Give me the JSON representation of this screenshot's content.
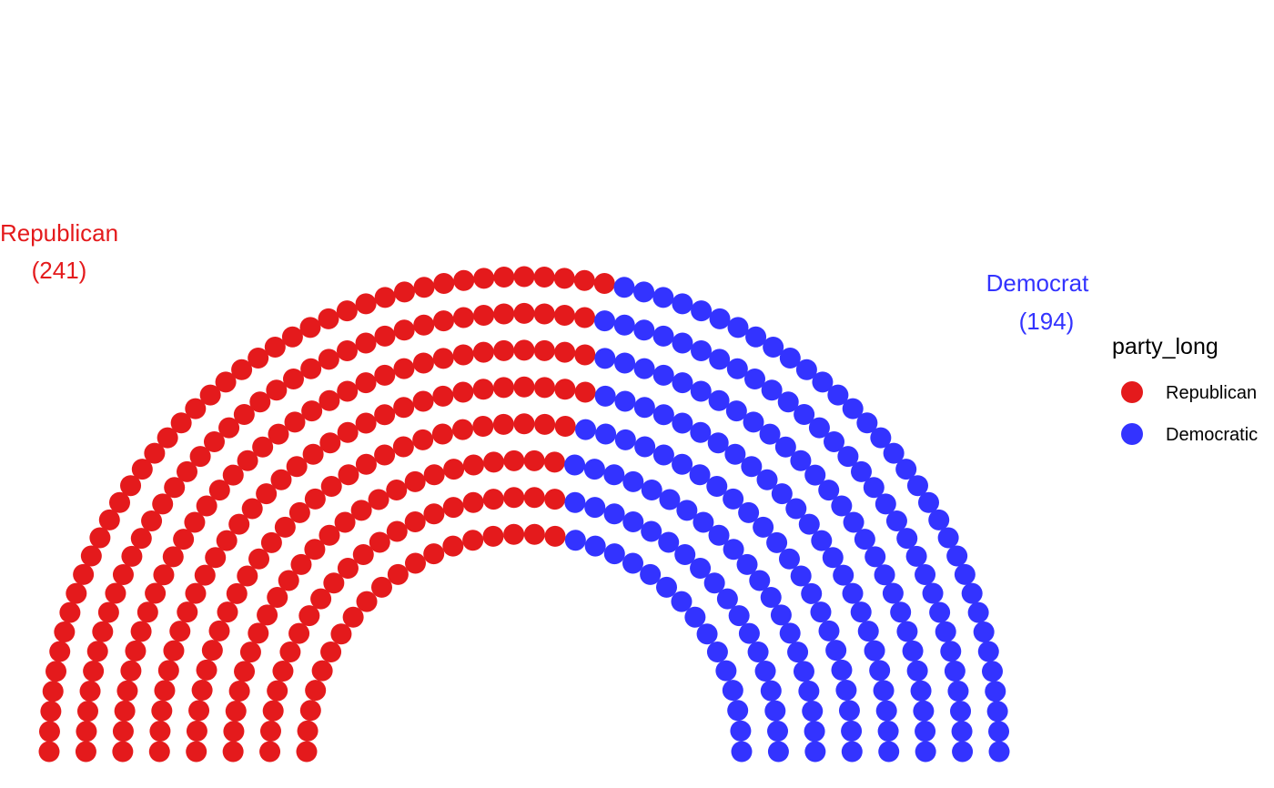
{
  "chart_data": {
    "type": "parliament",
    "total_seats": 435,
    "rows": 8,
    "series": [
      {
        "name": "Republican",
        "seats": 241,
        "color": "#E41A1C"
      },
      {
        "name": "Democratic",
        "seats": 194,
        "color": "#3333FF"
      }
    ],
    "labels": [
      {
        "party": "Republican",
        "seats_text": "(241)",
        "color": "#E41A1C"
      },
      {
        "party": "Democrat",
        "seats_text": "(194)",
        "color": "#3333FF"
      }
    ],
    "legend": {
      "title": "party_long",
      "placement": "right",
      "entries": [
        {
          "label": "Republican",
          "color": "#E41A1C"
        },
        {
          "label": "Democratic",
          "color": "#3333FF"
        }
      ]
    }
  }
}
